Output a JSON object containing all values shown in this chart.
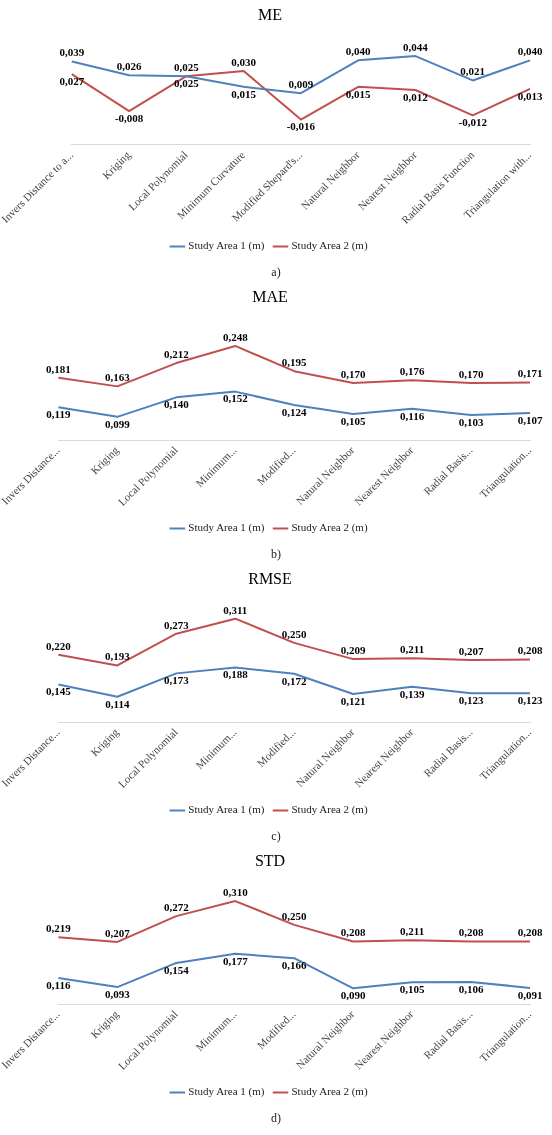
{
  "chart_data": [
    {
      "type": "line",
      "title": "ME",
      "categories": [
        "Invers Distance to a...",
        "Kriging",
        "Local Polynomial",
        "Minimum Curvature",
        "Modified Shepard's...",
        "Natural Neighbor",
        "Nearest Neighbor",
        "Radial Basis Function",
        "Triangulation with..."
      ],
      "series": [
        {
          "name": "Study Area 1 (m)",
          "color": "#4f81bd",
          "values": [
            0.039,
            0.026,
            0.025,
            0.015,
            0.009,
            0.04,
            0.044,
            0.021,
            0.04
          ],
          "value_labels": [
            "0,039",
            "0,026",
            "0,025",
            "0,015",
            "0,009",
            "0,040",
            "0,044",
            "0,021",
            "0,040"
          ]
        },
        {
          "name": "Study Area 2 (m)",
          "color": "#c0504d",
          "values": [
            0.027,
            -0.008,
            0.025,
            0.03,
            -0.016,
            0.015,
            0.012,
            -0.012,
            0.013
          ],
          "value_labels": [
            "0,027",
            "-0,008",
            "0,025",
            "0,030",
            "-0,016",
            "0,015",
            "0,012",
            "-0,012",
            "0,013"
          ]
        }
      ],
      "legend": "bottom",
      "marker": "none",
      "grid": false,
      "tick_labels": "x",
      "annotations": [
        "a)"
      ]
    },
    {
      "type": "line",
      "title": "MAE",
      "categories": [
        "Invers Distance...",
        "Kriging",
        "Local Polynomial",
        "Minimum...",
        "Modified...",
        "Natural Neighbor",
        "Nearest Neighbor",
        "Radial Basis...",
        "Triangulation..."
      ],
      "series": [
        {
          "name": "Study Area 1 (m)",
          "color": "#4f81bd",
          "values": [
            0.119,
            0.099,
            0.14,
            0.152,
            0.124,
            0.105,
            0.116,
            0.103,
            0.107
          ],
          "value_labels": [
            "0,119",
            "0,099",
            "0,140",
            "0,152",
            "0,124",
            "0,105",
            "0,116",
            "0,103",
            "0,107"
          ]
        },
        {
          "name": "Study Area 2 (m)",
          "color": "#c0504d",
          "values": [
            0.181,
            0.163,
            0.212,
            0.248,
            0.195,
            0.17,
            0.176,
            0.17,
            0.171
          ],
          "value_labels": [
            "0,181",
            "0,163",
            "0,212",
            "0,248",
            "0,195",
            "0,170",
            "0,176",
            "0,170",
            "0,171"
          ]
        }
      ],
      "legend": "bottom",
      "marker": "none",
      "grid": false,
      "tick_labels": "x",
      "annotations": [
        "b)"
      ]
    },
    {
      "type": "line",
      "title": "RMSE",
      "categories": [
        "Invers Distance...",
        "Kriging",
        "Local Polynomial",
        "Minimum...",
        "Modified...",
        "Natural Neighbor",
        "Nearest Neighbor",
        "Radial Basis...",
        "Triangulation..."
      ],
      "series": [
        {
          "name": "Study Area 1 (m)",
          "color": "#4f81bd",
          "values": [
            0.145,
            0.114,
            0.173,
            0.188,
            0.172,
            0.121,
            0.139,
            0.123,
            0.123
          ],
          "value_labels": [
            "0,145",
            "0,114",
            "0,173",
            "0,188",
            "0,172",
            "0,121",
            "0,139",
            "0,123",
            "0,123"
          ]
        },
        {
          "name": "Study Area 2 (m)",
          "color": "#c0504d",
          "values": [
            0.22,
            0.193,
            0.273,
            0.311,
            0.25,
            0.209,
            0.211,
            0.207,
            0.208
          ],
          "value_labels": [
            "0,220",
            "0,193",
            "0,273",
            "0,311",
            "0,250",
            "0,209",
            "0,211",
            "0,207",
            "0,208"
          ]
        }
      ],
      "legend": "bottom",
      "marker": "none",
      "grid": false,
      "tick_labels": "x",
      "annotations": [
        "c)"
      ]
    },
    {
      "type": "line",
      "title": "STD",
      "categories": [
        "Invers Distance...",
        "Kriging",
        "Local Polynomial",
        "Minimum...",
        "Modified...",
        "Natural Neighbor",
        "Nearest Neighbor",
        "Radial Basis...",
        "Triangulation..."
      ],
      "series": [
        {
          "name": "Study Area 1 (m)",
          "color": "#4f81bd",
          "values": [
            0.116,
            0.093,
            0.154,
            0.177,
            0.166,
            0.09,
            0.105,
            0.106,
            0.091
          ],
          "value_labels": [
            "0,116",
            "0,093",
            "0,154",
            "0,177",
            "0,166",
            "0,090",
            "0,105",
            "0,106",
            "0,091"
          ]
        },
        {
          "name": "Study Area 2 (m)",
          "color": "#c0504d",
          "values": [
            0.219,
            0.207,
            0.272,
            0.31,
            0.25,
            0.208,
            0.211,
            0.208,
            0.208
          ],
          "value_labels": [
            "0,219",
            "0,207",
            "0,272",
            "0,310",
            "0,250",
            "0,208",
            "0,211",
            "0,208",
            "0,208"
          ]
        }
      ],
      "legend": "bottom",
      "marker": "none",
      "grid": false,
      "tick_labels": "x",
      "annotations": [
        "d)"
      ]
    }
  ]
}
